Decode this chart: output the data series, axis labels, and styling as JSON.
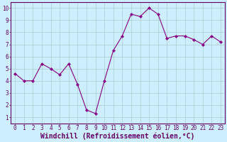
{
  "x": [
    0,
    1,
    2,
    3,
    4,
    5,
    6,
    7,
    8,
    9,
    10,
    11,
    12,
    13,
    14,
    15,
    16,
    17,
    18,
    19,
    20,
    21,
    22,
    23
  ],
  "y": [
    4.6,
    4.0,
    4.0,
    5.4,
    5.0,
    4.5,
    5.4,
    3.7,
    1.6,
    1.3,
    4.0,
    6.5,
    7.7,
    9.5,
    9.3,
    10.0,
    9.5,
    7.5,
    7.7,
    7.7,
    7.4,
    7.0,
    7.7,
    7.2
  ],
  "line_color": "#880088",
  "marker": "D",
  "marker_size": 2,
  "bg_color": "#cceeff",
  "grid_color": "#aacccc",
  "xlabel": "Windchill (Refroidissement éolien,°C)",
  "xlabel_fontsize": 7,
  "xlim": [
    -0.5,
    23.5
  ],
  "ylim": [
    0.5,
    10.5
  ],
  "yticks": [
    1,
    2,
    3,
    4,
    5,
    6,
    7,
    8,
    9,
    10
  ],
  "xticks": [
    0,
    1,
    2,
    3,
    4,
    5,
    6,
    7,
    8,
    9,
    10,
    11,
    12,
    13,
    14,
    15,
    16,
    17,
    18,
    19,
    20,
    21,
    22,
    23
  ],
  "tick_fontsize": 5.5,
  "axis_label_color": "#660066",
  "tick_color": "#660066",
  "spine_color": "#660066"
}
